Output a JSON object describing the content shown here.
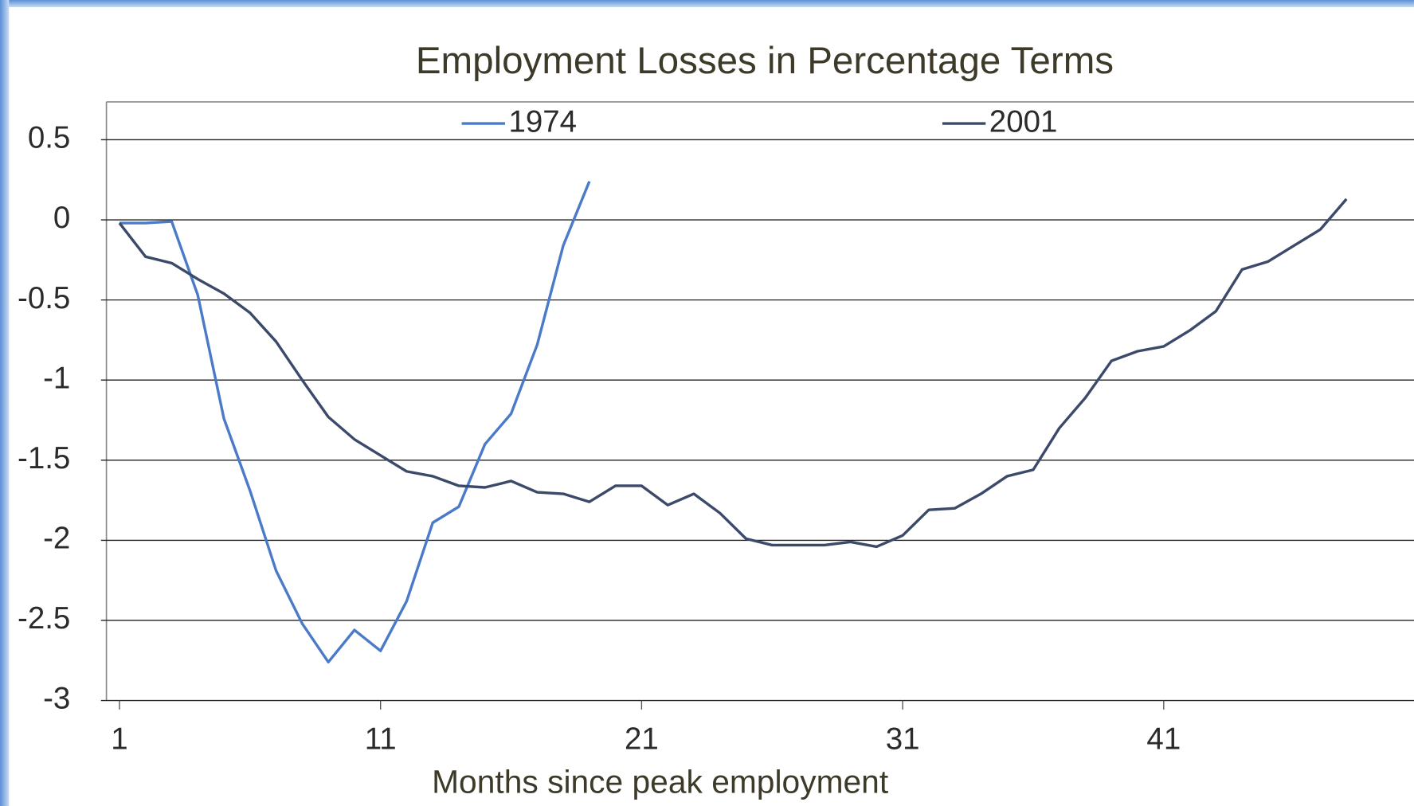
{
  "chart_data": {
    "type": "line",
    "title": "Employment Losses in Percentage Terms",
    "x_label": "Months since peak employment",
    "x": [
      1,
      2,
      3,
      4,
      5,
      6,
      7,
      8,
      9,
      10,
      11,
      12,
      13,
      14,
      15,
      16,
      17,
      18,
      19,
      20,
      21,
      22,
      23,
      24,
      25,
      26,
      27,
      28,
      29,
      30,
      31,
      32,
      33,
      34,
      35,
      36,
      37,
      38,
      39,
      40,
      41,
      42,
      43,
      44,
      45,
      46,
      47,
      48
    ],
    "xlim": [
      0.5,
      50.5
    ],
    "xticks": [
      1,
      11,
      21,
      31,
      41
    ],
    "ylim": [
      -3,
      0.5
    ],
    "yticks": [
      0.5,
      0,
      -0.5,
      -1,
      -1.5,
      -2,
      -2.5,
      -3
    ],
    "grid": true,
    "legend": "top",
    "series": [
      {
        "name": "1974",
        "color": "#4a7ac8",
        "values": [
          -0.02,
          -0.02,
          -0.01,
          -0.47,
          -1.24,
          -1.69,
          -2.19,
          -2.52,
          -2.76,
          -2.56,
          -2.69,
          -2.38,
          -1.89,
          -1.79,
          -1.4,
          -1.21,
          -0.78,
          -0.16,
          0.24,
          null,
          null,
          null,
          null,
          null,
          null,
          null,
          null,
          null,
          null,
          null,
          null,
          null,
          null,
          null,
          null,
          null,
          null,
          null,
          null,
          null,
          null,
          null,
          null,
          null,
          null,
          null,
          null,
          null
        ]
      },
      {
        "name": "2001",
        "color": "#3c4a6a",
        "values": [
          -0.02,
          -0.23,
          -0.27,
          -0.37,
          -0.46,
          -0.58,
          -0.76,
          -1.0,
          -1.23,
          -1.37,
          -1.47,
          -1.57,
          -1.6,
          -1.66,
          -1.67,
          -1.63,
          -1.7,
          -1.71,
          -1.76,
          -1.66,
          -1.66,
          -1.78,
          -1.71,
          -1.83,
          -1.99,
          -2.03,
          -2.03,
          -2.03,
          -2.01,
          -2.04,
          -1.97,
          -1.81,
          -1.8,
          -1.71,
          -1.6,
          -1.56,
          -1.3,
          -1.11,
          -0.88,
          -0.82,
          -0.79,
          -0.69,
          -0.57,
          -0.31,
          -0.26,
          -0.16,
          -0.06,
          0.13
        ]
      }
    ]
  }
}
